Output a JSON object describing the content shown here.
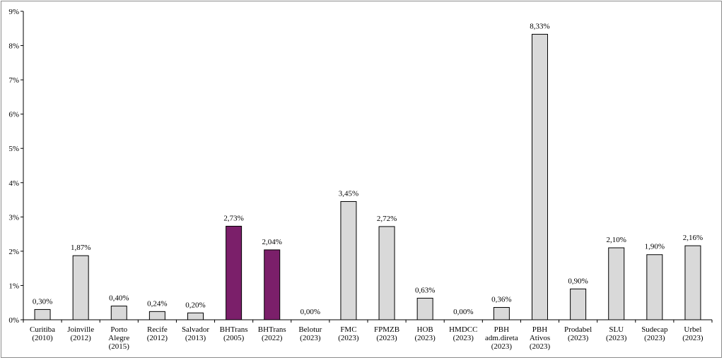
{
  "chart_data": {
    "type": "bar",
    "categories": [
      [
        "Curitiba",
        "(2010)"
      ],
      [
        "Joinville",
        "(2012)"
      ],
      [
        "Porto",
        "Alegre",
        "(2015)"
      ],
      [
        "Recife",
        "(2012)"
      ],
      [
        "Salvador",
        "(2013)"
      ],
      [
        "BHTrans",
        "(2005)"
      ],
      [
        "BHTrans",
        "(2022)"
      ],
      [
        "Belotur",
        "(2023)"
      ],
      [
        "FMC",
        "(2023)"
      ],
      [
        "FPMZB",
        "(2023)"
      ],
      [
        "HOB",
        "(2023)"
      ],
      [
        "HMDCC",
        "(2023)"
      ],
      [
        "PBH",
        "adm.direta",
        "(2023)"
      ],
      [
        "PBH",
        "Ativos",
        "(2023)"
      ],
      [
        "Prodabel",
        "(2023)"
      ],
      [
        "SLU",
        "(2023)"
      ],
      [
        "Sudecap",
        "(2023)"
      ],
      [
        "Urbel",
        "(2023)"
      ]
    ],
    "values": [
      0.3,
      1.87,
      0.4,
      0.24,
      0.2,
      2.73,
      2.04,
      0.0,
      3.45,
      2.72,
      0.63,
      0.0,
      0.36,
      8.33,
      0.9,
      2.1,
      1.9,
      2.16
    ],
    "data_labels": [
      "0,30%",
      "1,87%",
      "0,40%",
      "0,24%",
      "0,20%",
      "2,73%",
      "2,04%",
      "0,00%",
      "3,45%",
      "2,72%",
      "0,63%",
      "0,00%",
      "0,36%",
      "8,33%",
      "0,90%",
      "2,10%",
      "1,90%",
      "2,16%"
    ],
    "highlighted": [
      5,
      6
    ],
    "colors": {
      "default": "#d9d9d9",
      "highlight": "#7b1f6a",
      "outline": "#000000"
    },
    "ylim": [
      0,
      9
    ],
    "yticks": [
      "0%",
      "1%",
      "2%",
      "3%",
      "4%",
      "5%",
      "6%",
      "7%",
      "8%",
      "9%"
    ],
    "grid": false,
    "legend": "none",
    "title": "",
    "xlabel": "",
    "ylabel": ""
  }
}
